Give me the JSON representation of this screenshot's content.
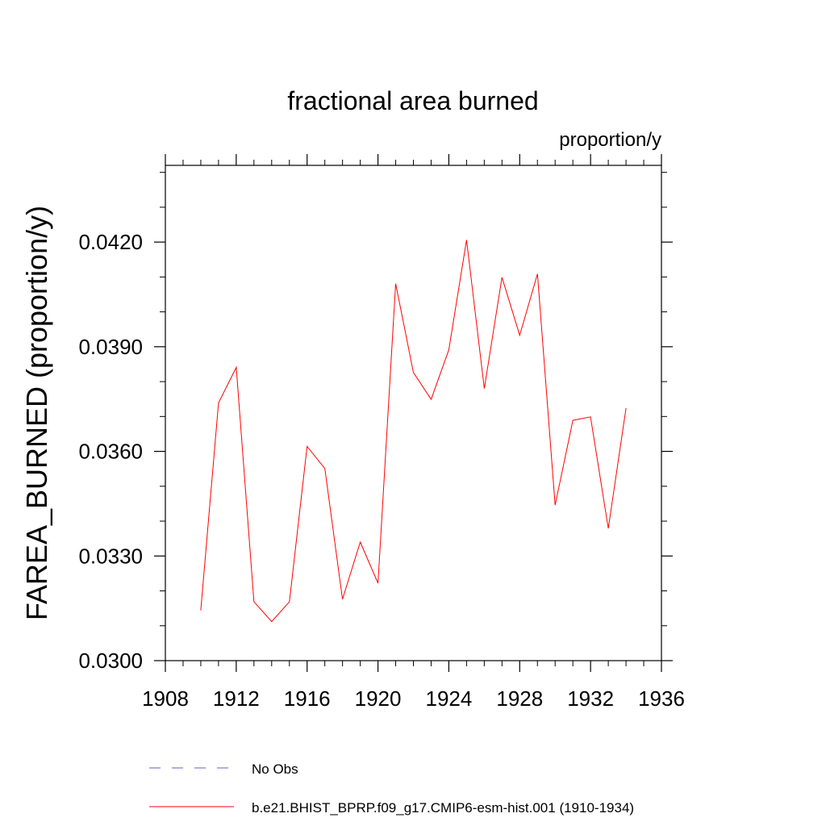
{
  "chart_data": {
    "type": "line",
    "title": "fractional area burned",
    "units_label": "proportion/y",
    "ylabel": "FAREA_BURNED  (proportion/y)",
    "xlabel": "",
    "xlim": [
      1908,
      1936
    ],
    "ylim": [
      0.03,
      0.0442
    ],
    "x_ticks": [
      1908,
      1912,
      1916,
      1920,
      1924,
      1928,
      1932,
      1936
    ],
    "x_tick_labels": [
      "1908",
      "1912",
      "1916",
      "1920",
      "1924",
      "1928",
      "1932",
      "1936"
    ],
    "y_ticks": [
      0.03,
      0.033,
      0.036,
      0.039,
      0.042
    ],
    "y_tick_labels": [
      "0.0300",
      "0.0330",
      "0.0360",
      "0.0390",
      "0.0420"
    ],
    "grid": false,
    "legend_position": "bottom",
    "series": [
      {
        "name": "b.e21.BHIST_BPRP.f09_g17.CMIP6-esm-hist.001 (1910-1934)",
        "color": "#ff0000",
        "style": "solid",
        "x": [
          1910,
          1911,
          1912,
          1913,
          1914,
          1915,
          1916,
          1917,
          1918,
          1919,
          1920,
          1921,
          1922,
          1923,
          1924,
          1925,
          1926,
          1927,
          1928,
          1929,
          1930,
          1931,
          1932,
          1933,
          1934
        ],
        "y": [
          0.03144,
          0.03739,
          0.03841,
          0.03169,
          0.03112,
          0.03169,
          0.03614,
          0.03551,
          0.03176,
          0.0334,
          0.03222,
          0.04081,
          0.03826,
          0.03749,
          0.03891,
          0.04206,
          0.0378,
          0.04099,
          0.03933,
          0.04109,
          0.03446,
          0.03689,
          0.03699,
          0.03379,
          0.03724
        ]
      }
    ],
    "legend": [
      {
        "label": "No Obs",
        "color": "#6a5acd",
        "style": "dashed"
      },
      {
        "label": "b.e21.BHIST_BPRP.f09_g17.CMIP6-esm-hist.001 (1910-1934)",
        "color": "#ff0000",
        "style": "solid"
      }
    ]
  }
}
